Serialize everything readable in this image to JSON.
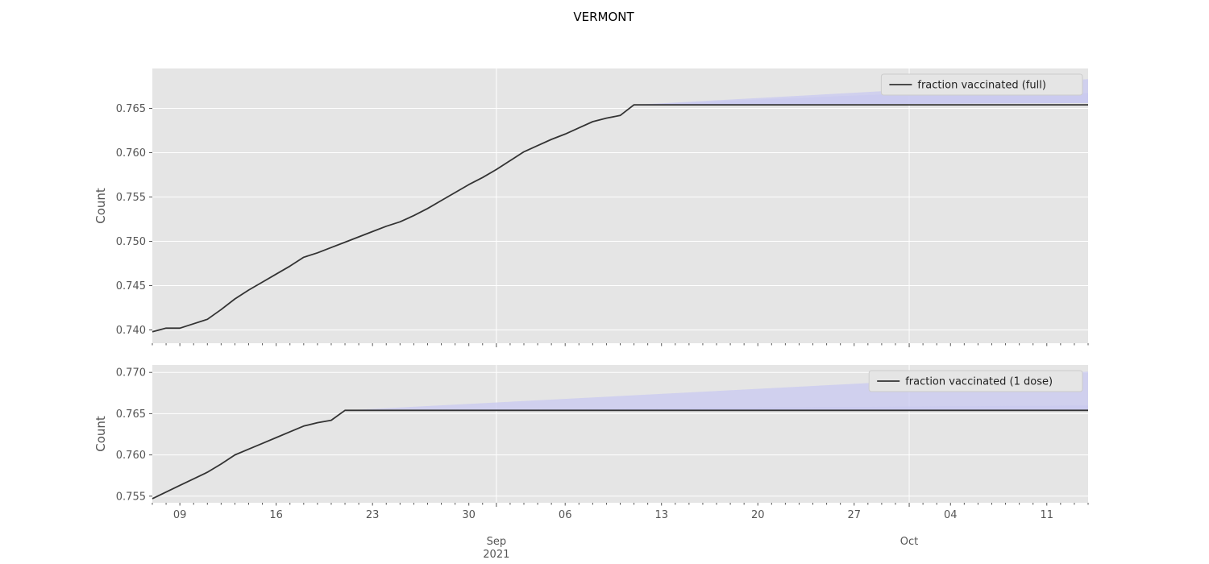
{
  "figure": {
    "title": "VERMONT"
  },
  "chart_data": [
    {
      "type": "line",
      "ylabel": "Count",
      "ylim": [
        0.7385,
        0.7695
      ],
      "yticks": [
        0.74,
        0.745,
        0.75,
        0.755,
        0.76,
        0.765
      ],
      "ytick_labels": [
        "0.740",
        "0.745",
        "0.750",
        "0.755",
        "0.760",
        "0.765"
      ],
      "xlim": [
        "2021-08-07",
        "2021-10-14"
      ],
      "grid": true,
      "legend_position": "top-right",
      "series": [
        {
          "name": "fraction vaccinated (full)",
          "color": "#333333",
          "x": [
            "2021-08-07",
            "2021-08-08",
            "2021-08-09",
            "2021-08-10",
            "2021-08-11",
            "2021-08-12",
            "2021-08-13",
            "2021-08-14",
            "2021-08-15",
            "2021-08-16",
            "2021-08-17",
            "2021-08-18",
            "2021-08-19",
            "2021-08-20",
            "2021-08-21",
            "2021-08-22",
            "2021-08-23",
            "2021-08-24",
            "2021-08-25",
            "2021-08-26",
            "2021-08-27",
            "2021-08-28",
            "2021-08-29",
            "2021-08-30",
            "2021-08-31",
            "2021-09-01",
            "2021-09-02",
            "2021-09-03",
            "2021-09-04",
            "2021-09-05",
            "2021-09-06",
            "2021-09-07",
            "2021-09-08",
            "2021-09-09",
            "2021-09-10",
            "2021-09-11",
            "2021-10-14"
          ],
          "y": [
            0.7398,
            0.7402,
            0.7402,
            0.7407,
            0.7412,
            0.7423,
            0.7435,
            0.7445,
            0.7454,
            0.7463,
            0.7472,
            0.7482,
            0.7487,
            0.7493,
            0.7499,
            0.7505,
            0.7511,
            0.7517,
            0.7522,
            0.7529,
            0.7537,
            0.7546,
            0.7555,
            0.7564,
            0.7572,
            0.7581,
            0.7591,
            0.7601,
            0.7608,
            0.7615,
            0.7621,
            0.7628,
            0.7635,
            0.7639,
            0.7642,
            0.7654,
            0.7654
          ]
        }
      ],
      "forecast_band": {
        "color": "#c8c8f0",
        "x": [
          "2021-09-11",
          "2021-10-01",
          "2021-10-14"
        ],
        "upper": [
          0.7654,
          0.7671,
          0.7683
        ],
        "lower": [
          0.7654,
          0.7655,
          0.7656
        ],
        "inner_upper": [
          0.7654,
          0.7667,
          0.7667
        ]
      }
    },
    {
      "type": "line",
      "ylabel": "Count",
      "ylim": [
        0.7542,
        0.7709
      ],
      "yticks": [
        0.755,
        0.76,
        0.765,
        0.77
      ],
      "ytick_labels": [
        "0.755",
        "0.760",
        "0.765",
        "0.770"
      ],
      "xlim": [
        "2021-08-07",
        "2021-10-14"
      ],
      "grid": true,
      "legend_position": "top-right",
      "xtick_labels": [
        {
          "date": "2021-08-09",
          "label": "09"
        },
        {
          "date": "2021-08-16",
          "label": "16"
        },
        {
          "date": "2021-08-23",
          "label": "23"
        },
        {
          "date": "2021-08-30",
          "label": "30"
        },
        {
          "date": "2021-09-06",
          "label": "06"
        },
        {
          "date": "2021-09-13",
          "label": "13"
        },
        {
          "date": "2021-09-20",
          "label": "20"
        },
        {
          "date": "2021-09-27",
          "label": "27"
        },
        {
          "date": "2021-10-04",
          "label": "04"
        },
        {
          "date": "2021-10-11",
          "label": "11"
        }
      ],
      "xmajor_labels": [
        {
          "date": "2021-09-01",
          "label": "Sep",
          "sublabel": "2021"
        },
        {
          "date": "2021-10-01",
          "label": "Oct",
          "sublabel": ""
        }
      ],
      "series": [
        {
          "name": "fraction vaccinated (1 dose)",
          "color": "#333333",
          "x": [
            "2021-08-07",
            "2021-08-08",
            "2021-08-09",
            "2021-08-10",
            "2021-08-11",
            "2021-08-12",
            "2021-08-13",
            "2021-08-14",
            "2021-08-15",
            "2021-08-16",
            "2021-08-17",
            "2021-08-18",
            "2021-08-19",
            "2021-08-20",
            "2021-08-21",
            "2021-10-14"
          ],
          "y": [
            0.7547,
            0.7555,
            0.7563,
            0.7571,
            0.7579,
            0.7589,
            0.76,
            0.7607,
            0.7614,
            0.7621,
            0.7628,
            0.7635,
            0.7639,
            0.7642,
            0.7654,
            0.7654
          ]
        }
      ],
      "forecast_band": {
        "color": "#c8c8f0",
        "x": [
          "2021-08-21",
          "2021-10-14"
        ],
        "upper": [
          0.7654,
          0.7701
        ],
        "lower": [
          0.7654,
          0.7654
        ],
        "inner_upper": [
          0.7654,
          0.766
        ]
      }
    }
  ]
}
